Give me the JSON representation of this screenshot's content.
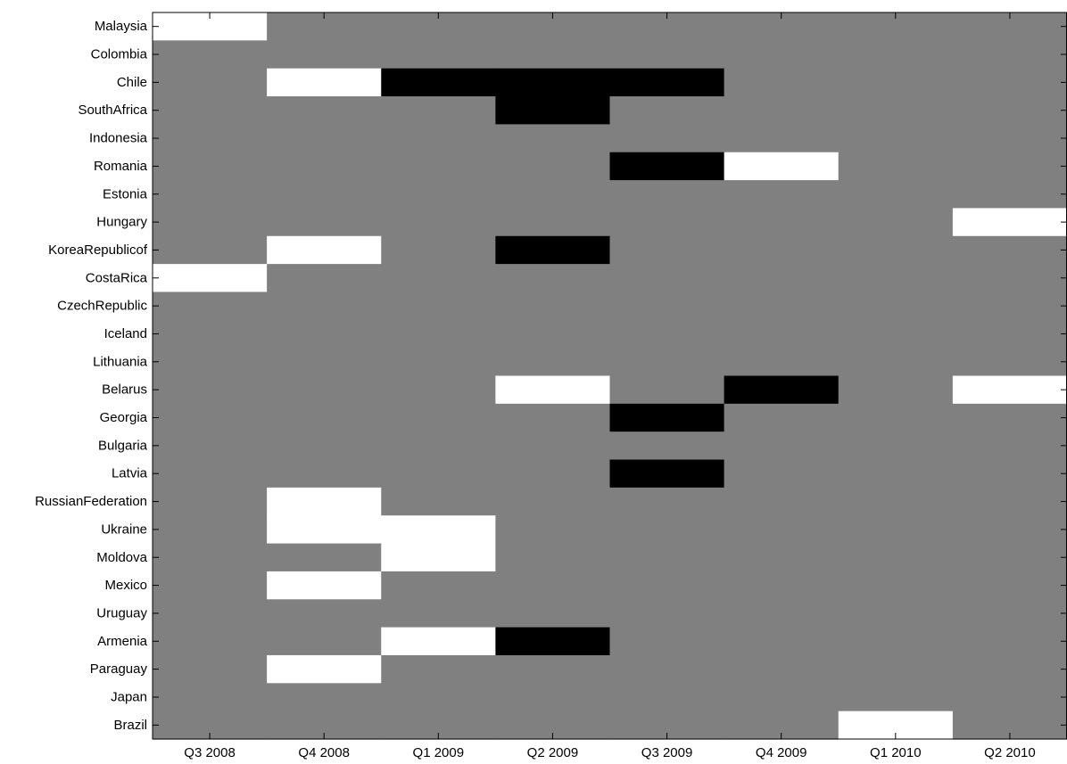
{
  "chart_data": {
    "type": "heatmap",
    "title": "",
    "xlabel": "",
    "ylabel": "",
    "x": [
      "Q3 2008",
      "Q4 2008",
      "Q1 2009",
      "Q2 2009",
      "Q3 2009",
      "Q4 2009",
      "Q1 2010",
      "Q2 2010"
    ],
    "y": [
      "Malaysia",
      "Colombia",
      "Chile",
      "SouthAfrica",
      "Indonesia",
      "Romania",
      "Estonia",
      "Hungary",
      "KoreaRepublicof",
      "CostaRica",
      "CzechRepublic",
      "Iceland",
      "Lithuania",
      "Belarus",
      "Georgia",
      "Bulgaria",
      "Latvia",
      "RussianFederation",
      "Ukraine",
      "Moldova",
      "Mexico",
      "Uruguay",
      "Armenia",
      "Paraguay",
      "Japan",
      "Brazil"
    ],
    "values": [
      [
        1,
        0,
        0,
        0,
        0,
        0,
        0,
        0
      ],
      [
        0,
        0,
        0,
        0,
        0,
        0,
        0,
        0
      ],
      [
        0,
        1,
        -1,
        -1,
        -1,
        0,
        0,
        0
      ],
      [
        0,
        0,
        0,
        -1,
        0,
        0,
        0,
        0
      ],
      [
        0,
        0,
        0,
        0,
        0,
        0,
        0,
        0
      ],
      [
        0,
        0,
        0,
        0,
        -1,
        1,
        0,
        0
      ],
      [
        0,
        0,
        0,
        0,
        0,
        0,
        0,
        0
      ],
      [
        0,
        0,
        0,
        0,
        0,
        0,
        0,
        1
      ],
      [
        0,
        1,
        0,
        -1,
        0,
        0,
        0,
        0
      ],
      [
        1,
        0,
        0,
        0,
        0,
        0,
        0,
        0
      ],
      [
        0,
        0,
        0,
        0,
        0,
        0,
        0,
        0
      ],
      [
        0,
        0,
        0,
        0,
        0,
        0,
        0,
        0
      ],
      [
        0,
        0,
        0,
        0,
        0,
        0,
        0,
        0
      ],
      [
        0,
        0,
        0,
        1,
        0,
        -1,
        0,
        1
      ],
      [
        0,
        0,
        0,
        0,
        -1,
        0,
        0,
        0
      ],
      [
        0,
        0,
        0,
        0,
        0,
        0,
        0,
        0
      ],
      [
        0,
        0,
        0,
        0,
        -1,
        0,
        0,
        0
      ],
      [
        0,
        1,
        0,
        0,
        0,
        0,
        0,
        0
      ],
      [
        0,
        1,
        1,
        0,
        0,
        0,
        0,
        0
      ],
      [
        0,
        0,
        1,
        0,
        0,
        0,
        0,
        0
      ],
      [
        0,
        1,
        0,
        0,
        0,
        0,
        0,
        0
      ],
      [
        0,
        0,
        0,
        0,
        0,
        0,
        0,
        0
      ],
      [
        0,
        0,
        1,
        -1,
        0,
        0,
        0,
        0
      ],
      [
        0,
        1,
        0,
        0,
        0,
        0,
        0,
        0
      ],
      [
        0,
        0,
        0,
        0,
        0,
        0,
        0,
        0
      ],
      [
        0,
        0,
        0,
        0,
        0,
        0,
        1,
        0
      ]
    ],
    "colormap": {
      "-1": "#000000",
      "0": "#808080",
      "1": "#ffffff"
    },
    "legend": "none",
    "grid": false
  }
}
